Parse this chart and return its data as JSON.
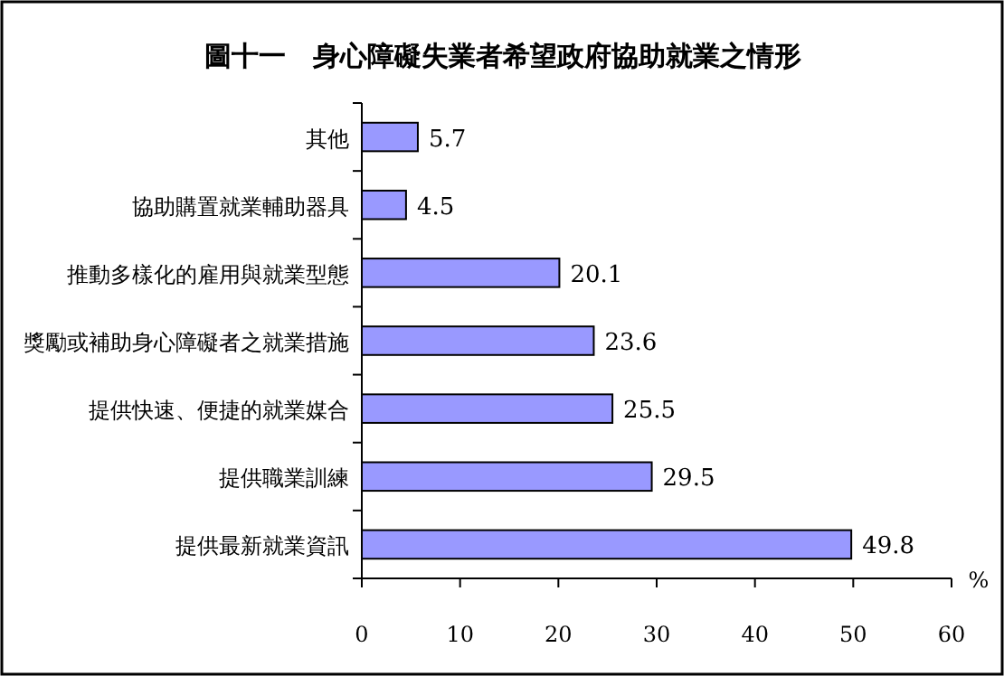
{
  "chart_data": {
    "type": "bar",
    "orientation": "horizontal",
    "title": "圖十一　身心障礙失業者希望政府協助就業之情形",
    "categories": [
      "其他",
      "協助購置就業輔助器具",
      "推動多樣化的雇用與就業型態",
      "獎勵或補助身心障礙者之就業措施",
      "提供快速、便捷的就業媒合",
      "提供職業訓練",
      "提供最新就業資訊"
    ],
    "values": [
      5.7,
      4.5,
      20.1,
      23.6,
      25.5,
      29.5,
      49.8
    ],
    "color": "#9999ff",
    "xlabel": "%",
    "xlim": [
      0,
      60
    ],
    "xticks": [
      0,
      10,
      20,
      30,
      40,
      50,
      60
    ],
    "data_labels": true,
    "grid": false
  }
}
